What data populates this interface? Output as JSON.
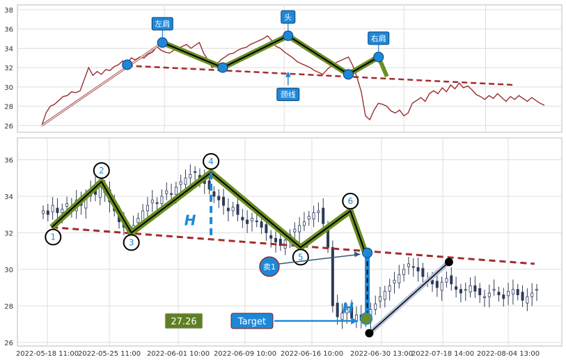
{
  "chart_data": [
    {
      "type": "line",
      "panel": "top",
      "ylim": [
        25.3,
        38.5
      ],
      "yticks": [
        26,
        28,
        30,
        32,
        34,
        36,
        38
      ],
      "grid": true,
      "series_color": "#9b2d2d",
      "pattern_color": "#6b8e23",
      "neckline": {
        "x": [
          0.17,
          0.94
        ],
        "y": [
          32.2,
          30.2
        ],
        "color": "#a52a2a"
      },
      "pattern_points": [
        {
          "x": 0.24,
          "y": 34.6,
          "label": "左肩"
        },
        {
          "x": 0.36,
          "y": 32.0
        },
        {
          "x": 0.49,
          "y": 35.3,
          "label": "头"
        },
        {
          "x": 0.61,
          "y": 31.3
        },
        {
          "x": 0.67,
          "y": 33.1,
          "label": "右肩"
        }
      ],
      "left_shoulder_start": {
        "x": 0.17,
        "y": 32.3
      },
      "arrow": {
        "from": {
          "x": 0.0,
          "y": 26.0
        },
        "to": {
          "x": 0.24,
          "y": 34.6
        }
      },
      "neckline_label": "颈线",
      "series": [
        {
          "values": [
            26,
            27.3,
            28.0,
            28.2,
            28.6,
            29.0,
            29.1,
            29.5,
            29.4,
            29.6,
            30.8,
            32.0,
            31.2,
            31.6,
            31.3,
            31.8,
            31.7,
            32.1,
            32.3,
            32.7,
            32.4,
            33.0,
            32.8,
            33.1,
            33.0,
            33.4,
            33.6,
            34.2,
            33.8,
            33.6,
            33.5,
            33.8,
            34.0,
            34.2,
            34.4,
            34.0,
            34.3,
            34.6,
            33.5,
            32.8,
            32.0,
            32.3,
            32.8,
            33.1,
            33.4,
            33.5,
            33.8,
            34.0,
            34.1,
            34.4,
            34.6,
            34.8,
            35.0,
            35.3,
            34.8,
            34.2,
            34.0,
            33.6,
            33.3,
            33.0,
            32.6,
            32.4,
            32.2,
            32.0,
            31.7,
            31.5,
            31.3,
            31.8,
            32.2,
            32.5,
            32.7,
            32.9,
            33.1,
            32.2,
            31.0,
            29.5,
            27.0,
            26.6,
            27.6,
            28.3,
            28.2,
            28.0,
            27.5,
            27.3,
            27.6,
            27.0,
            27.3,
            28.3,
            28.6,
            28.9,
            28.5,
            29.3,
            29.6,
            29.3,
            29.9,
            29.5,
            30.2,
            29.8,
            30.4,
            29.9,
            30.1,
            29.7,
            29.2,
            29.0,
            28.7,
            29.1,
            28.8,
            29.3,
            28.9,
            28.5,
            29.0,
            28.7,
            29.1,
            28.8,
            28.5,
            28.9,
            28.6,
            28.3,
            28.1
          ]
        }
      ]
    },
    {
      "type": "candlestick",
      "panel": "bottom",
      "ylim": [
        25.8,
        37.2
      ],
      "yticks": [
        26,
        28,
        30,
        32,
        34,
        36
      ],
      "xtick_labels": [
        "2022-05-18 11:00",
        "2022-05-25 11:00",
        "2022-06-01 10:00",
        "2022-06-09 10:00",
        "2022-06-16 10:00",
        "2022-06-30 13:00",
        "2022-07-18 14:00",
        "2022-08-04 13:00"
      ],
      "grid": true,
      "neckline": {
        "x": [
          0.02,
          0.99
        ],
        "y": [
          32.3,
          30.3
        ],
        "color": "#a52a2a"
      },
      "pattern_points": [
        {
          "x": 0.02,
          "y": 32.3,
          "label": "1"
        },
        {
          "x": 0.12,
          "y": 34.8,
          "label": "2"
        },
        {
          "x": 0.18,
          "y": 32.0,
          "label": "3"
        },
        {
          "x": 0.34,
          "y": 35.3,
          "label": "4"
        },
        {
          "x": 0.52,
          "y": 31.2,
          "label": "5"
        },
        {
          "x": 0.62,
          "y": 33.2,
          "label": "6"
        },
        {
          "x": 0.65,
          "y": 30.9
        }
      ],
      "height_label": "H",
      "height_line": {
        "x": 0.34,
        "y_top": 35.3,
        "y_bottom": 31.6
      },
      "breakout_drop": {
        "x": 0.654,
        "y_top": 30.9,
        "y_bottom": 27.3
      },
      "target_point": {
        "x": 0.652,
        "y": 27.3
      },
      "target_label": "Target",
      "target_value": "27.26",
      "sell_label": "卖1",
      "low_point": {
        "x": 0.658,
        "y": 26.5
      },
      "rebound_point": {
        "x": 0.818,
        "y": 30.4
      },
      "series": [
        {
          "name": "price",
          "values": [
            33.2,
            33.0,
            33.5,
            33.1,
            33.3,
            33.6,
            33.2,
            33.8,
            33.5,
            34.0,
            34.4,
            34.1,
            34.5,
            34.2,
            33.7,
            33.2,
            32.6,
            32.3,
            32.0,
            32.4,
            32.8,
            33.2,
            33.5,
            33.8,
            33.6,
            34.0,
            34.3,
            34.1,
            34.5,
            34.8,
            35.0,
            35.2,
            35.3,
            35.0,
            34.7,
            34.4,
            34.0,
            33.8,
            33.5,
            33.2,
            33.4,
            33.0,
            32.7,
            32.5,
            32.8,
            32.6,
            32.3,
            32.0,
            31.7,
            31.5,
            31.3,
            31.6,
            31.9,
            32.2,
            32.4,
            32.6,
            32.9,
            33.1,
            33.2,
            32.5,
            31.2,
            28.0,
            27.4,
            27.6,
            27.8,
            27.3,
            27.5,
            27.2,
            27.4,
            27.8,
            28.1,
            28.5,
            28.8,
            29.1,
            29.4,
            29.7,
            30.0,
            30.3,
            30.1,
            29.9,
            29.6,
            29.4,
            29.2,
            29.0,
            29.3,
            29.5,
            29.2,
            28.9,
            28.7,
            28.9,
            29.1,
            28.8,
            28.6,
            28.5,
            28.7,
            28.9,
            28.6,
            28.4,
            28.8,
            28.9,
            28.6,
            28.3,
            28.5,
            28.7,
            28.9
          ]
        }
      ]
    }
  ]
}
